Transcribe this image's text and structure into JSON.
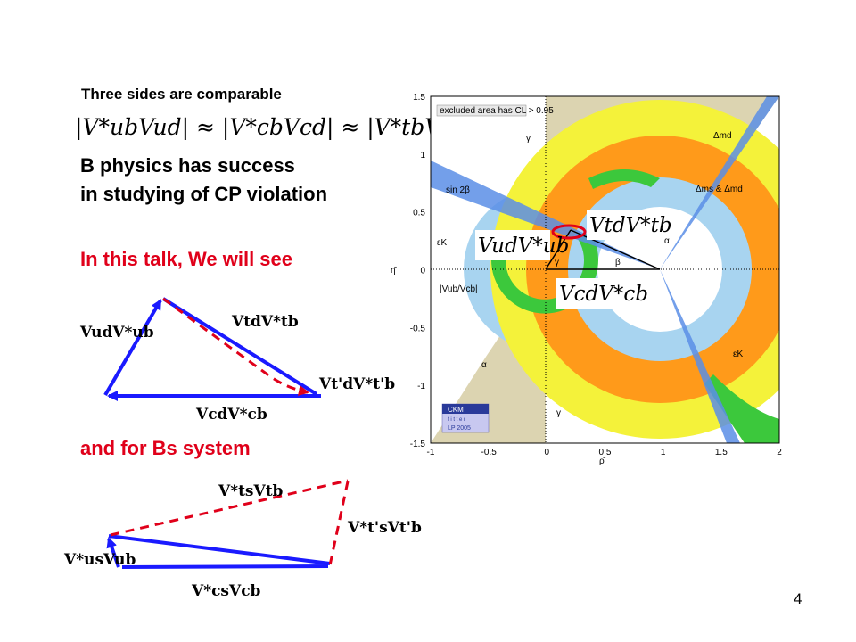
{
  "slide": {
    "heading_comparable": "Three sides are comparable",
    "formula": "|V*ubVud| ≈ |V*cbVcd| ≈ |V*tbVtd|",
    "bphysics_line1": "B physics has success",
    "bphysics_line2": "in studying of CP violation",
    "talk_heading": "In this talk, We will see",
    "bs_heading": "and for Bs system",
    "page_number": "4",
    "accent_color": "#e0001a",
    "arrow_color": "#1a1aff"
  },
  "triangle_bd": {
    "label_left": "VudV*ub",
    "label_top": "VtdV*tb",
    "label_right": "Vt'dV*t'b",
    "label_bottom": "VcdV*cb"
  },
  "triangle_bs": {
    "label_top": "V*tsVtb",
    "label_right": "V*t'sVt'b",
    "label_left": "V*usVub",
    "label_bottom": "V*csVcb"
  },
  "ckm_plot": {
    "legend_note": "excluded area has CL > 0.95",
    "x_axis_label": "ρ̄",
    "y_axis_label": "η̄",
    "x_ticks": [
      "-1",
      "-0.5",
      "0",
      "0.5",
      "1",
      "1.5",
      "2"
    ],
    "y_ticks": [
      "1.5",
      "1",
      "0.5",
      "0",
      "-0.5",
      "-1",
      "-1.5"
    ],
    "region_labels": {
      "gamma_top": "γ",
      "sin2beta": "sin 2β",
      "dmd": "Δmd",
      "dms_dmd": "Δms & Δmd",
      "epsk_left": "εK",
      "vub_vcb": "|Vub/Vcb|",
      "alpha_bottom": "α",
      "gamma_bottom": "γ",
      "epsk_right": "εK",
      "alpha_apex": "α",
      "beta": "β",
      "gamma_apex": "γ"
    },
    "overlay_labels": {
      "vud": "VudV*ub",
      "vtd": "VtdV*tb",
      "vcd": "VcdV*cb"
    },
    "logo_line1": "CKM",
    "logo_line2": "f i t t e r",
    "logo_line3": "LP 2005"
  }
}
